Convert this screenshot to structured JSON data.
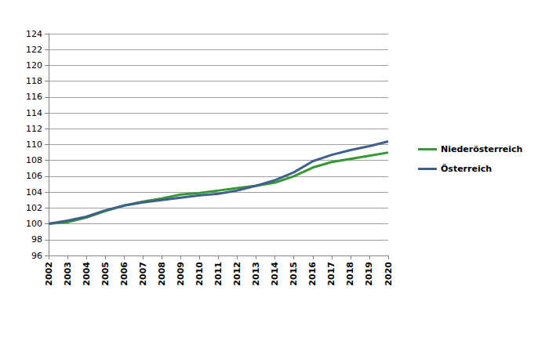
{
  "chart_data": {
    "type": "line",
    "categories": [
      "2002",
      "2003",
      "2004",
      "2005",
      "2006",
      "2007",
      "2008",
      "2009",
      "2010",
      "2011",
      "2012",
      "2013",
      "2014",
      "2015",
      "2016",
      "2017",
      "2018",
      "2019",
      "2020"
    ],
    "series": [
      {
        "name": "Niederösterreich",
        "color": "#339933",
        "values": [
          100,
          100.2,
          100.8,
          101.6,
          102.3,
          102.8,
          103.2,
          103.7,
          103.9,
          104.2,
          104.5,
          104.8,
          105.2,
          106.0,
          107.1,
          107.8,
          108.2,
          108.6,
          109.0
        ]
      },
      {
        "name": "Österreich",
        "color": "#3f5f8c",
        "values": [
          100,
          100.4,
          100.9,
          101.7,
          102.3,
          102.7,
          103.0,
          103.3,
          103.6,
          103.8,
          104.2,
          104.8,
          105.5,
          106.5,
          107.9,
          108.7,
          109.3,
          109.8,
          110.4
        ]
      }
    ],
    "ylim": [
      96,
      124
    ],
    "yticks": [
      96,
      98,
      100,
      102,
      104,
      106,
      108,
      110,
      112,
      114,
      116,
      118,
      120,
      122,
      124
    ],
    "grid": true,
    "legend": "right"
  }
}
